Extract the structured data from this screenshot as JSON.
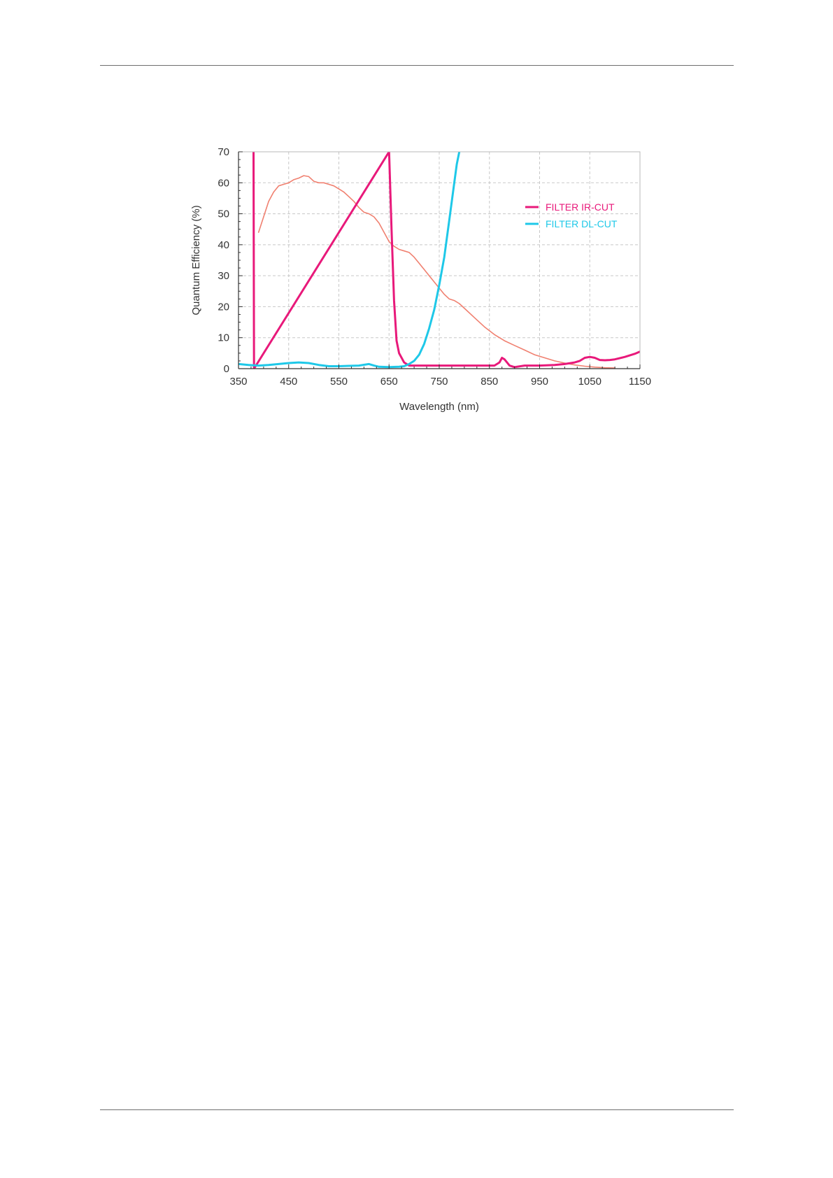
{
  "chart_data": {
    "type": "line",
    "xlabel": "Wavelength (nm)",
    "ylabel": "Quantum Efficiency (%)",
    "xlim": [
      350,
      1150
    ],
    "ylim": [
      0,
      70
    ],
    "x_ticks": [
      350,
      450,
      550,
      650,
      750,
      850,
      950,
      1050,
      1150
    ],
    "y_ticks": [
      0,
      10,
      20,
      30,
      40,
      50,
      60,
      70
    ],
    "grid": true,
    "legend_position": "top-right",
    "series": [
      {
        "name": "",
        "color": "#f08070",
        "points": [
          [
            390,
            44
          ],
          [
            400,
            49
          ],
          [
            410,
            54
          ],
          [
            420,
            57
          ],
          [
            430,
            59
          ],
          [
            440,
            59.5
          ],
          [
            450,
            60
          ],
          [
            460,
            61
          ],
          [
            470,
            61.5
          ],
          [
            480,
            62.3
          ],
          [
            490,
            62
          ],
          [
            500,
            60.5
          ],
          [
            510,
            60
          ],
          [
            520,
            60
          ],
          [
            530,
            59.5
          ],
          [
            540,
            59
          ],
          [
            550,
            58
          ],
          [
            560,
            57
          ],
          [
            570,
            55.5
          ],
          [
            580,
            54
          ],
          [
            590,
            52
          ],
          [
            600,
            50.5
          ],
          [
            610,
            50
          ],
          [
            620,
            49
          ],
          [
            630,
            47
          ],
          [
            640,
            44
          ],
          [
            650,
            41
          ],
          [
            660,
            39.5
          ],
          [
            670,
            38.5
          ],
          [
            680,
            38
          ],
          [
            690,
            37.5
          ],
          [
            700,
            36
          ],
          [
            710,
            34
          ],
          [
            720,
            32
          ],
          [
            730,
            30
          ],
          [
            740,
            28
          ],
          [
            750,
            26
          ],
          [
            760,
            24
          ],
          [
            770,
            22.5
          ],
          [
            780,
            22
          ],
          [
            790,
            21
          ],
          [
            800,
            19.5
          ],
          [
            820,
            16.5
          ],
          [
            840,
            13.5
          ],
          [
            860,
            11
          ],
          [
            880,
            9
          ],
          [
            900,
            7.5
          ],
          [
            920,
            6
          ],
          [
            940,
            4.5
          ],
          [
            960,
            3.5
          ],
          [
            980,
            2.5
          ],
          [
            1000,
            1.8
          ],
          [
            1020,
            1.2
          ],
          [
            1040,
            0.8
          ],
          [
            1060,
            0.5
          ],
          [
            1080,
            0.3
          ],
          [
            1100,
            0.2
          ]
        ]
      },
      {
        "name": "FILTER IR-CUT",
        "color": "#e8197a",
        "points": [
          [
            380,
            70
          ],
          [
            381,
            0
          ],
          [
            650,
            70
          ],
          [
            655,
            45
          ],
          [
            660,
            22
          ],
          [
            665,
            9
          ],
          [
            670,
            5
          ],
          [
            680,
            2
          ],
          [
            690,
            1
          ],
          [
            700,
            1
          ],
          [
            750,
            1
          ],
          [
            800,
            1
          ],
          [
            850,
            1
          ],
          [
            860,
            1
          ],
          [
            870,
            2
          ],
          [
            875,
            3.5
          ],
          [
            880,
            3
          ],
          [
            885,
            2
          ],
          [
            890,
            1
          ],
          [
            900,
            0.5
          ],
          [
            920,
            1
          ],
          [
            950,
            1
          ],
          [
            980,
            1.2
          ],
          [
            1000,
            1.5
          ],
          [
            1020,
            2
          ],
          [
            1030,
            2.5
          ],
          [
            1040,
            3.5
          ],
          [
            1050,
            3.8
          ],
          [
            1060,
            3.5
          ],
          [
            1070,
            2.8
          ],
          [
            1080,
            2.7
          ],
          [
            1090,
            2.8
          ],
          [
            1100,
            3
          ],
          [
            1120,
            3.8
          ],
          [
            1140,
            4.8
          ],
          [
            1150,
            5.5
          ]
        ]
      },
      {
        "name": "FILTER DL-CUT",
        "color": "#1ec8e8",
        "points": [
          [
            350,
            1.5
          ],
          [
            370,
            1.2
          ],
          [
            390,
            1
          ],
          [
            410,
            1.2
          ],
          [
            430,
            1.5
          ],
          [
            450,
            1.8
          ],
          [
            470,
            2
          ],
          [
            490,
            1.8
          ],
          [
            510,
            1.2
          ],
          [
            530,
            0.8
          ],
          [
            550,
            0.8
          ],
          [
            570,
            0.9
          ],
          [
            590,
            1
          ],
          [
            610,
            1.5
          ],
          [
            620,
            1
          ],
          [
            630,
            0.6
          ],
          [
            650,
            0.5
          ],
          [
            670,
            0.6
          ],
          [
            680,
            0.8
          ],
          [
            690,
            1.5
          ],
          [
            700,
            2.5
          ],
          [
            710,
            4.5
          ],
          [
            720,
            8
          ],
          [
            730,
            13
          ],
          [
            740,
            19
          ],
          [
            750,
            27
          ],
          [
            760,
            36
          ],
          [
            770,
            48
          ],
          [
            780,
            60
          ],
          [
            785,
            66
          ],
          [
            790,
            70
          ]
        ]
      }
    ]
  }
}
